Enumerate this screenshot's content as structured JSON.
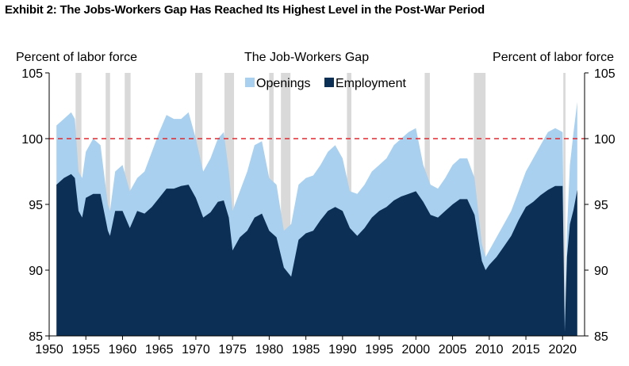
{
  "exhibit_title": "Exhibit 2: The Jobs-Workers Gap Has Reached Its Highest Level in the Post-War Period",
  "chart_data": {
    "type": "area",
    "title": "The Job-Workers Gap",
    "ylabel_left": "Percent of labor force",
    "ylabel_right": "Percent of labor force",
    "ylim": [
      85,
      105
    ],
    "xlim": [
      1950,
      2023
    ],
    "yticks": [
      85,
      90,
      95,
      100,
      105
    ],
    "xticks": [
      1950,
      1955,
      1960,
      1965,
      1970,
      1975,
      1980,
      1985,
      1990,
      1995,
      2000,
      2005,
      2010,
      2015,
      2020
    ],
    "reference_line": 100,
    "legend_position": "top-center",
    "colors": {
      "openings": "#a9d0ee",
      "employment": "#0b2f55",
      "recession": "#d9d9d9",
      "reference_line": "#e0282e"
    },
    "recessions": [
      [
        1953.6,
        1954.4
      ],
      [
        1957.7,
        1958.3
      ],
      [
        1960.3,
        1961.1
      ],
      [
        1969.9,
        1970.9
      ],
      [
        1973.9,
        1975.2
      ],
      [
        1980.0,
        1980.6
      ],
      [
        1981.6,
        1982.9
      ],
      [
        1990.6,
        1991.2
      ],
      [
        2001.2,
        2001.9
      ],
      [
        2007.9,
        2009.5
      ],
      [
        2020.1,
        2020.4
      ]
    ],
    "series": [
      {
        "name": "Openings",
        "type": "stacked-top",
        "x": [
          1951,
          1952,
          1953,
          1953.5,
          1954,
          1954.5,
          1955,
          1956,
          1957,
          1958,
          1958.3,
          1959,
          1960,
          1961,
          1962,
          1963,
          1964,
          1965,
          1966,
          1967,
          1968,
          1969,
          1970,
          1971,
          1972,
          1973,
          1973.8,
          1974.5,
          1975,
          1976,
          1977,
          1978,
          1979,
          1980,
          1981,
          1982,
          1983,
          1984,
          1985,
          1986,
          1987,
          1988,
          1989,
          1990,
          1991,
          1992,
          1993,
          1994,
          1995,
          1996,
          1997,
          1998,
          1999,
          2000,
          2001,
          2002,
          2003,
          2004,
          2005,
          2006,
          2007,
          2008,
          2009,
          2009.5,
          2010,
          2011,
          2012,
          2013,
          2014,
          2015,
          2016,
          2017,
          2018,
          2019,
          2020,
          2020.3,
          2020.6,
          2021,
          2021.5,
          2022
        ],
        "values": [
          101.0,
          101.5,
          102.0,
          101.5,
          97.5,
          97.0,
          99.0,
          100.0,
          99.5,
          95.0,
          94.5,
          97.5,
          98.0,
          96.0,
          97.0,
          97.5,
          99.0,
          100.5,
          101.8,
          101.5,
          101.5,
          102.0,
          100.0,
          97.5,
          98.5,
          100.0,
          100.5,
          97.5,
          94.5,
          96.0,
          97.5,
          99.5,
          99.8,
          97.0,
          96.5,
          93.0,
          93.5,
          96.5,
          97.0,
          97.2,
          98.0,
          99.0,
          99.5,
          98.5,
          96.0,
          95.8,
          96.5,
          97.5,
          98.0,
          98.5,
          99.5,
          100.0,
          100.5,
          100.8,
          98.0,
          96.5,
          96.2,
          97.0,
          98.0,
          98.5,
          98.5,
          97.0,
          92.0,
          91.0,
          91.5,
          92.5,
          93.5,
          94.5,
          96.0,
          97.5,
          98.5,
          99.5,
          100.5,
          100.8,
          100.5,
          86.0,
          93.0,
          98.0,
          100.5,
          102.8
        ]
      },
      {
        "name": "Employment",
        "type": "base",
        "x": [
          1951,
          1952,
          1953,
          1953.5,
          1954,
          1954.5,
          1955,
          1956,
          1957,
          1958,
          1958.3,
          1959,
          1960,
          1961,
          1962,
          1963,
          1964,
          1965,
          1966,
          1967,
          1968,
          1969,
          1970,
          1971,
          1972,
          1973,
          1973.8,
          1974.5,
          1975,
          1976,
          1977,
          1978,
          1979,
          1980,
          1981,
          1982,
          1983,
          1984,
          1985,
          1986,
          1987,
          1988,
          1989,
          1990,
          1991,
          1992,
          1993,
          1994,
          1995,
          1996,
          1997,
          1998,
          1999,
          2000,
          2001,
          2002,
          2003,
          2004,
          2005,
          2006,
          2007,
          2008,
          2009,
          2009.5,
          2010,
          2011,
          2012,
          2013,
          2014,
          2015,
          2016,
          2017,
          2018,
          2019,
          2020,
          2020.3,
          2020.6,
          2021,
          2021.5,
          2022
        ],
        "values": [
          96.5,
          97.0,
          97.3,
          97.0,
          94.5,
          94.0,
          95.5,
          95.8,
          95.8,
          93.0,
          92.6,
          94.5,
          94.5,
          93.2,
          94.5,
          94.3,
          94.8,
          95.5,
          96.2,
          96.2,
          96.4,
          96.5,
          95.5,
          94.0,
          94.4,
          95.2,
          95.3,
          94.0,
          91.5,
          92.5,
          93.0,
          94.0,
          94.3,
          93.0,
          92.5,
          90.2,
          89.5,
          92.3,
          92.8,
          93.0,
          93.8,
          94.5,
          94.8,
          94.5,
          93.2,
          92.6,
          93.2,
          94.0,
          94.5,
          94.8,
          95.3,
          95.6,
          95.8,
          96.0,
          95.2,
          94.2,
          94.0,
          94.5,
          95.0,
          95.4,
          95.4,
          94.2,
          90.7,
          90.0,
          90.4,
          91.0,
          91.8,
          92.6,
          93.8,
          94.8,
          95.2,
          95.7,
          96.1,
          96.4,
          96.4,
          85.3,
          91.0,
          93.5,
          94.6,
          96.1
        ]
      }
    ]
  }
}
